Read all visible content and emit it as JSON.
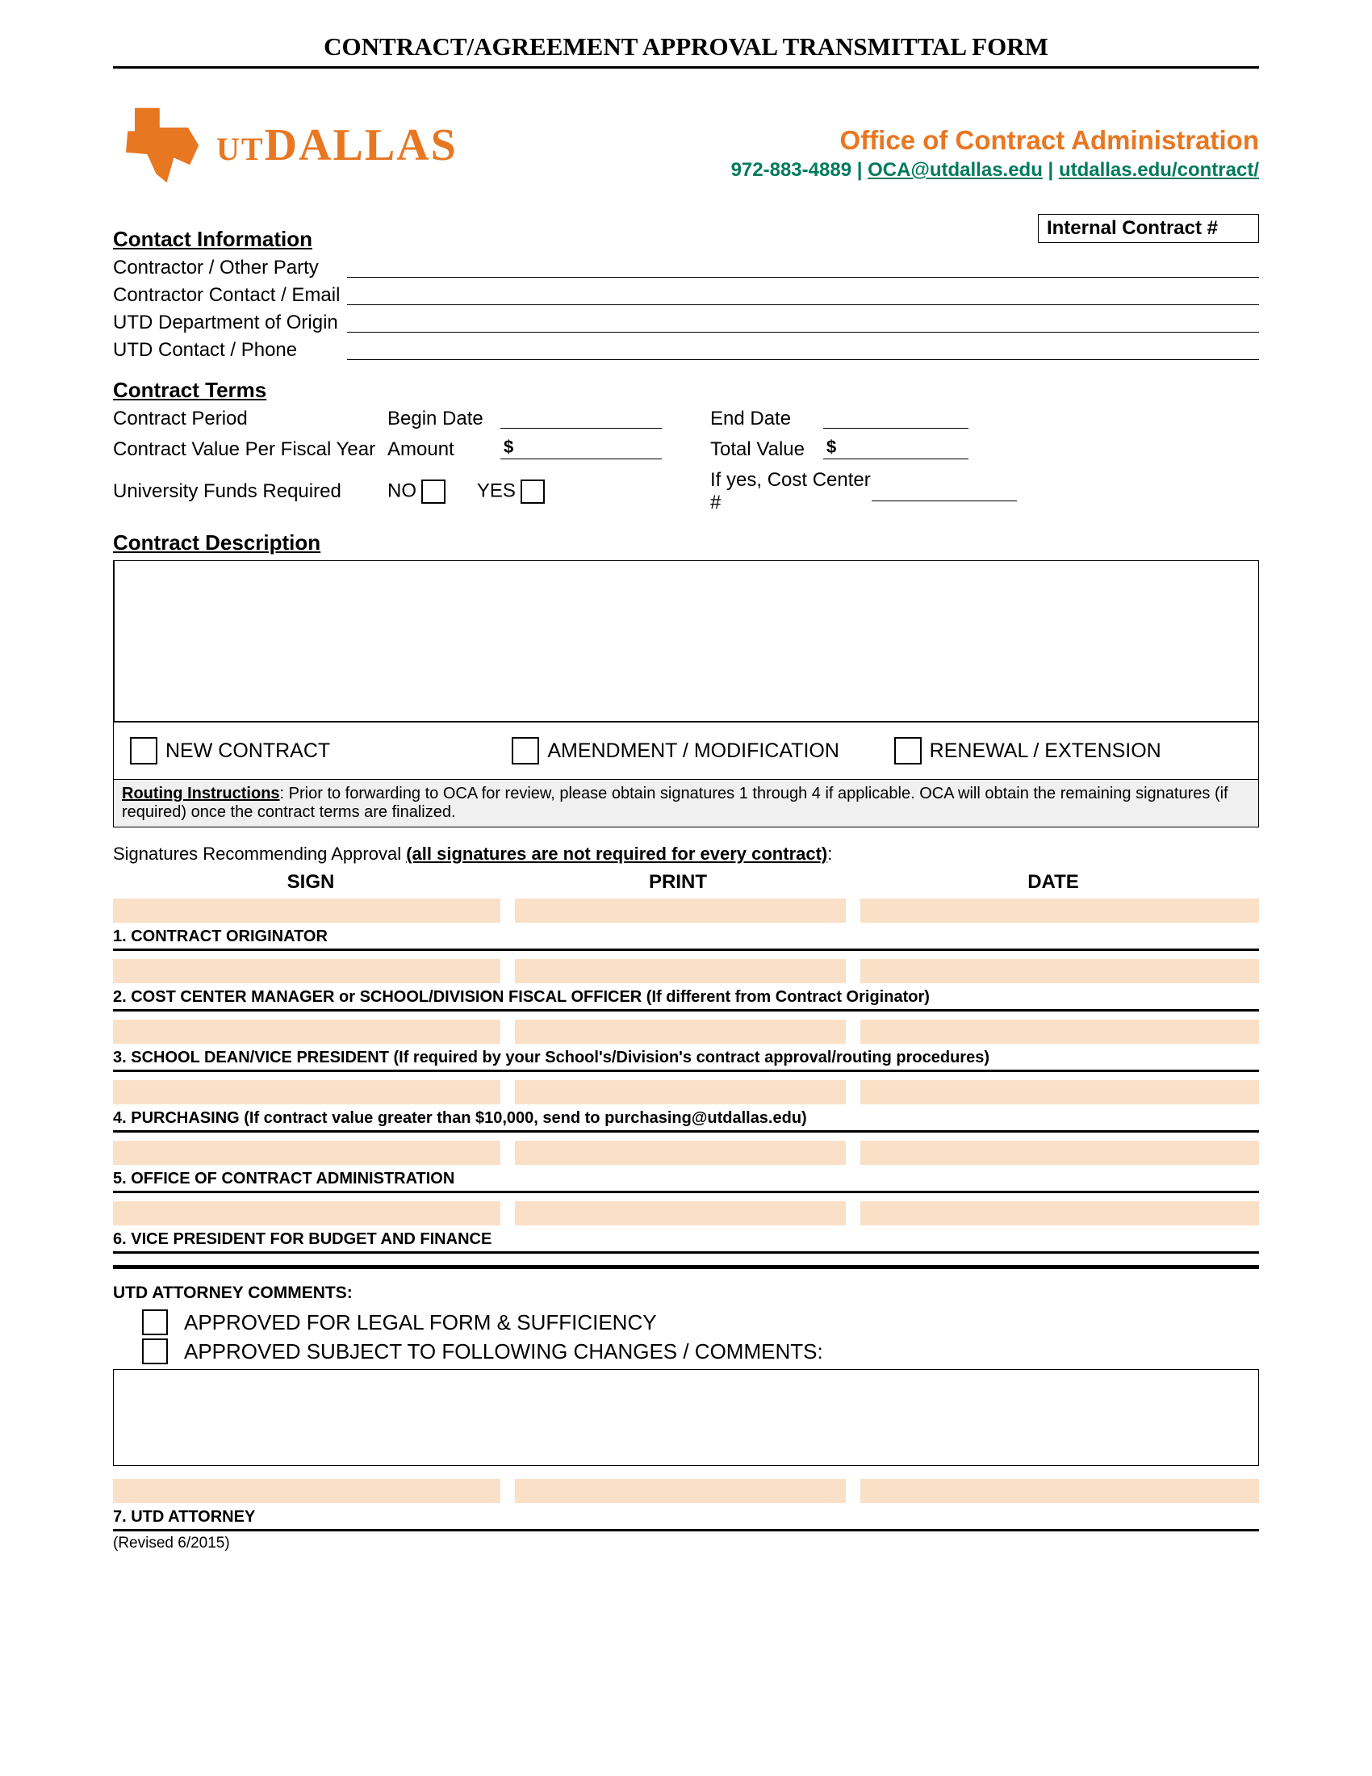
{
  "colors": {
    "brand_orange": "#e87722",
    "link_green": "#007a5e",
    "sig_bar": "#fbe0c8",
    "routing_bg": "#f0f0f0"
  },
  "page_title": "CONTRACT/AGREEMENT APPROVAL TRANSMITTAL FORM",
  "logo": {
    "ut": "UT",
    "dallas": "DALLAS"
  },
  "office": {
    "title": "Office of Contract Administration",
    "phone": "972-883-4889",
    "email": "OCA@utdallas.edu",
    "url": "utdallas.edu/contract/"
  },
  "internal_contract_label": "Internal Contract #",
  "contact_info": {
    "heading": "Contact Information",
    "rows": [
      "Contractor / Other Party",
      "Contractor Contact / Email",
      "UTD Department of Origin",
      "UTD Contact / Phone"
    ]
  },
  "contract_terms": {
    "heading": "Contract Terms",
    "period_label": "Contract Period",
    "begin_label": "Begin Date",
    "end_label": "End Date",
    "value_year_label": "Contract Value Per Fiscal Year",
    "amount_label": "Amount",
    "total_label": "Total Value",
    "funds_label": "University Funds Required",
    "no_label": "NO",
    "yes_label": "YES",
    "cost_center_label": "If yes, Cost Center #"
  },
  "contract_description_heading": "Contract Description",
  "contract_types": {
    "new": "NEW CONTRACT",
    "amend": "AMENDMENT / MODIFICATION",
    "renew": "RENEWAL / EXTENSION"
  },
  "routing": {
    "title": "Routing Instructions",
    "text": ": Prior to forwarding to OCA for review, please obtain signatures 1 through 4 if applicable.  OCA will obtain the remaining signatures (if required) once the contract terms are finalized."
  },
  "signatures": {
    "intro_plain": "Signatures Recommending Approval ",
    "intro_underline": "(all signatures are not required for every contract)",
    "intro_colon": ":",
    "cols": {
      "sign": "SIGN",
      "print": "PRINT",
      "date": "DATE"
    },
    "rows": [
      "1. CONTRACT ORIGINATOR",
      "2. COST CENTER MANAGER or SCHOOL/DIVISION FISCAL OFFICER (If different from Contract Originator)",
      "3. SCHOOL DEAN/VICE PRESIDENT (If required by your School's/Division's contract approval/routing procedures)",
      "4. PURCHASING (If contract value greater than $10,000, send to purchasing@utdallas.edu)",
      "5. OFFICE OF CONTRACT ADMINISTRATION",
      "6. VICE PRESIDENT FOR BUDGET AND FINANCE"
    ]
  },
  "attorney": {
    "heading": "UTD ATTORNEY COMMENTS:",
    "opt1": "APPROVED FOR LEGAL FORM & SUFFICIENCY",
    "opt2": "APPROVED SUBJECT TO FOLLOWING CHANGES / COMMENTS:",
    "row7": "7. UTD ATTORNEY"
  },
  "revised": "(Revised 6/2015)"
}
